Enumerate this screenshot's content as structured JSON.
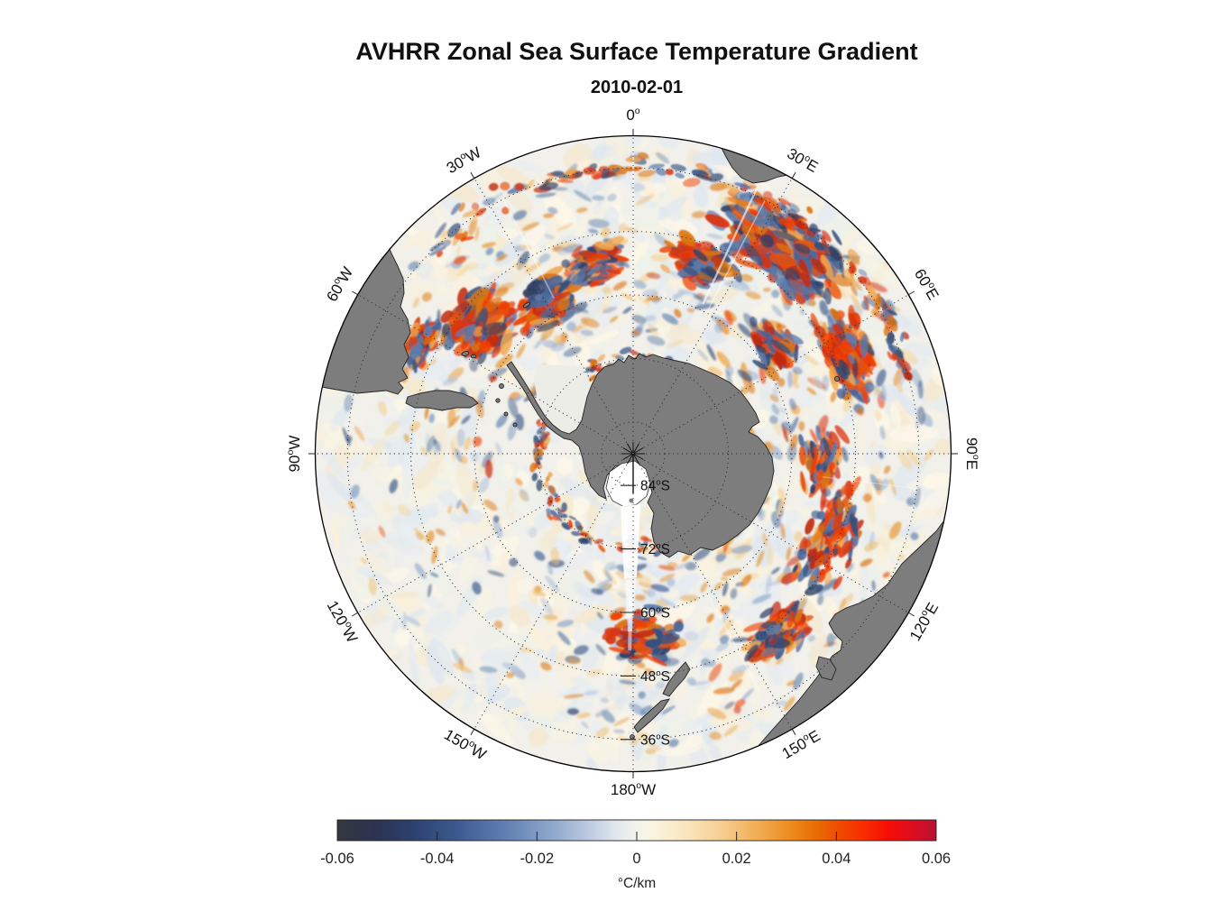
{
  "title": "AVHRR Zonal Sea Surface Temperature Gradient",
  "subtitle": "2010-02-01",
  "map": {
    "projection": "south polar stereographic",
    "outer_latitude_degS": 30,
    "graticule": {
      "latitude_circles_degS": [
        36,
        48,
        60,
        72,
        84
      ],
      "meridian_step_deg": 30,
      "style": "dotted"
    },
    "longitude_labels": [
      {
        "text": "0°",
        "deg": 0
      },
      {
        "text": "30°E",
        "deg": 30
      },
      {
        "text": "60°E",
        "deg": 60
      },
      {
        "text": "90°E",
        "deg": 90
      },
      {
        "text": "120°E",
        "deg": 120
      },
      {
        "text": "150°E",
        "deg": 150
      },
      {
        "text": "180°W",
        "deg": 180
      },
      {
        "text": "150°W",
        "deg": 210
      },
      {
        "text": "120°W",
        "deg": 240
      },
      {
        "text": "90°W",
        "deg": 270
      },
      {
        "text": "60°W",
        "deg": 300
      },
      {
        "text": "30°W",
        "deg": 330
      }
    ],
    "latitude_labels": [
      {
        "text": "84°S",
        "latS": 84
      },
      {
        "text": "72°S",
        "latS": 72
      },
      {
        "text": "60°S",
        "latS": 60
      },
      {
        "text": "48°S",
        "latS": 48
      },
      {
        "text": "36°S",
        "latS": 36
      }
    ],
    "land_color": "#7d7d7d",
    "coast_color": "#222222",
    "no_data_color": "#ffffff",
    "ocean_base_color": "#f1f0ea"
  },
  "colorbar": {
    "min": -0.06,
    "max": 0.06,
    "unit_label": "°C/km",
    "ticks": [
      {
        "label": "-0.06",
        "value": -0.06
      },
      {
        "label": "-0.04",
        "value": -0.04
      },
      {
        "label": "-0.02",
        "value": -0.02
      },
      {
        "label": "0",
        "value": 0
      },
      {
        "label": "0.02",
        "value": 0.02
      },
      {
        "label": "0.04",
        "value": 0.04
      },
      {
        "label": "0.06",
        "value": 0.06
      }
    ],
    "stops": [
      {
        "t": 0.0,
        "c": "#34383f"
      },
      {
        "t": 0.06,
        "c": "#2b3350"
      },
      {
        "t": 0.12,
        "c": "#2c3f6c"
      },
      {
        "t": 0.2,
        "c": "#3c5a8f"
      },
      {
        "t": 0.28,
        "c": "#5f7fb1"
      },
      {
        "t": 0.36,
        "c": "#90a8cc"
      },
      {
        "t": 0.42,
        "c": "#bccbe1"
      },
      {
        "t": 0.46,
        "c": "#dde4ec"
      },
      {
        "t": 0.5,
        "c": "#f2f4ec"
      },
      {
        "t": 0.53,
        "c": "#fbf3de"
      },
      {
        "t": 0.58,
        "c": "#f9e6c0"
      },
      {
        "t": 0.64,
        "c": "#f6cf94"
      },
      {
        "t": 0.7,
        "c": "#f2ae55"
      },
      {
        "t": 0.76,
        "c": "#ec8a1e"
      },
      {
        "t": 0.8,
        "c": "#e96c04"
      },
      {
        "t": 0.84,
        "c": "#ef4a02"
      },
      {
        "t": 0.88,
        "c": "#f92c00"
      },
      {
        "t": 0.92,
        "c": "#f60d05"
      },
      {
        "t": 0.96,
        "c": "#dd0e20"
      },
      {
        "t": 1.0,
        "c": "#b61233"
      }
    ]
  },
  "chart_data": {
    "type": "heatmap",
    "title": "AVHRR Zonal Sea Surface Temperature Gradient",
    "subtitle": "2010-02-01",
    "projection": "south polar stereographic map, pole at center, outer edge ~30°S",
    "variable": "zonal sea surface temperature gradient",
    "units": "°C/km",
    "value_range": [
      -0.06,
      0.06
    ],
    "colorbar_ticks": [
      -0.06,
      -0.04,
      -0.02,
      0,
      0.02,
      0.04,
      0.06
    ],
    "legend_position": "bottom horizontal colorbar",
    "grid": "dotted graticule; latitude circles 36°S,48°S,60°S,72°S,84°S; meridians every 30°",
    "longitude_ring_labels": [
      "0°",
      "30°E",
      "60°E",
      "90°E",
      "120°E",
      "150°E",
      "180°W",
      "150°W",
      "120°W",
      "90°W",
      "60°W",
      "30°W"
    ],
    "latitude_axis_labels": [
      "84°S",
      "72°S",
      "60°S",
      "48°S",
      "36°S"
    ]
  }
}
